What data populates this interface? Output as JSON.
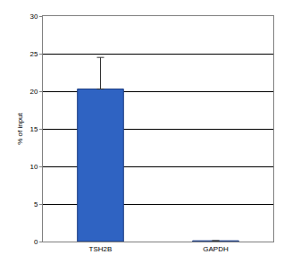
{
  "chart_data": {
    "type": "bar",
    "y_label": "% of input",
    "categories": [
      "TSH2B",
      "GAPDH"
    ],
    "values": [
      20.3,
      0.1
    ],
    "errors": [
      4.2,
      0
    ],
    "color": "#2f63c2",
    "ylim": [
      0,
      30
    ],
    "yticks": [
      0,
      5,
      10,
      15,
      20,
      25,
      30
    ],
    "grid": true
  }
}
